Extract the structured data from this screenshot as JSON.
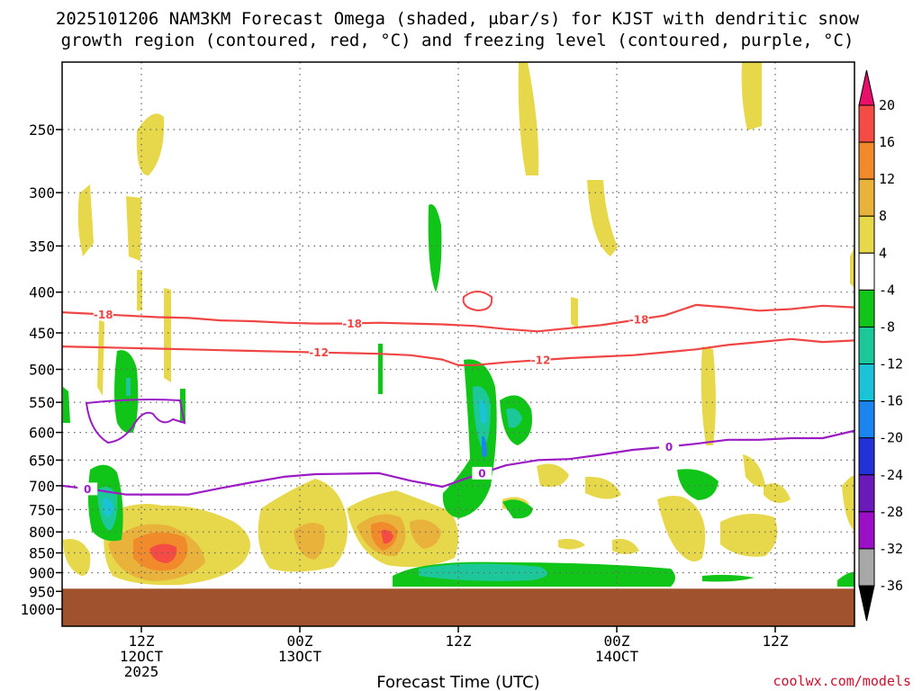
{
  "chart_data": {
    "type": "heatmap",
    "title_line1": "2025101206 NAM3KM Forecast Omega (shaded, μbar/s) for KJST with dendritic snow",
    "title_line2": "growth region (contoured, red, °C) and freezing level (contoured, purple, °C)",
    "xlabel": "Forecast Time (UTC)",
    "credit": "coolwx.com/models",
    "y_ticks": [
      "250",
      "300",
      "350",
      "400",
      "450",
      "500",
      "550",
      "600",
      "650",
      "700",
      "750",
      "800",
      "850",
      "900",
      "950",
      "1000"
    ],
    "y_tick_values": [
      250,
      300,
      350,
      400,
      450,
      500,
      550,
      600,
      650,
      700,
      750,
      800,
      850,
      900,
      950,
      1000
    ],
    "ylim_hpa": [
      200,
      1050
    ],
    "xlim_hours": [
      6,
      56
    ],
    "x_ticks": [
      {
        "hour": 11,
        "line1": "12Z",
        "line2": "12OCT",
        "line3": "2025"
      },
      {
        "hour": 21,
        "line1": "00Z",
        "line2": "13OCT",
        "line3": ""
      },
      {
        "hour": 31,
        "line1": "12Z",
        "line2": "",
        "line3": ""
      },
      {
        "hour": 41,
        "line1": "00Z",
        "line2": "14OCT",
        "line3": ""
      },
      {
        "hour": 51,
        "line1": "12Z",
        "line2": "",
        "line3": ""
      }
    ],
    "colorbar": {
      "levels": [
        "20",
        "16",
        "12",
        "8",
        "4",
        "-4",
        "-8",
        "-12",
        "-16",
        "-20",
        "-24",
        "-28",
        "-32",
        "-36"
      ],
      "colors": [
        "#e8106a",
        "#f44b45",
        "#f08a2a",
        "#e9b23a",
        "#e6d84a",
        "#ffffff",
        "#11c418",
        "#1cc89a",
        "#1ac3d6",
        "#1c84ee",
        "#2231d8",
        "#6a1ab8",
        "#9b0fc7",
        "#a8a8a8",
        "#000000"
      ]
    },
    "ground_level_hpa": 950,
    "ground_color": "#a0522d",
    "contour_labels": {
      "dgz_top": "-18",
      "dgz_bottom": "-12",
      "freezing": "0"
    },
    "series": [
      {
        "name": "-18C isotherm",
        "color": "#f04545",
        "hours": [
          6,
          8,
          10,
          12,
          14,
          16,
          18,
          20,
          22,
          24,
          26,
          28,
          30,
          32,
          34,
          36,
          38,
          40,
          42,
          44,
          46,
          48,
          50,
          52,
          54,
          56
        ],
        "pressure": [
          424,
          426,
          428,
          430,
          431,
          434,
          435,
          437,
          438,
          438,
          437,
          438,
          439,
          441,
          445,
          448,
          444,
          440,
          434,
          428,
          415,
          418,
          422,
          420,
          416,
          418
        ]
      },
      {
        "name": "-12C isotherm",
        "color": "#f04545",
        "hours": [
          6,
          8,
          10,
          12,
          14,
          16,
          18,
          20,
          22,
          24,
          26,
          28,
          30,
          31,
          32,
          34,
          36,
          38,
          40,
          42,
          44,
          46,
          48,
          50,
          52,
          54,
          56
        ],
        "pressure": [
          468,
          469,
          470,
          471,
          472,
          473,
          474,
          475,
          476,
          477,
          478,
          480,
          486,
          494,
          494,
          490,
          487,
          484,
          482,
          480,
          476,
          472,
          466,
          462,
          458,
          462,
          460
        ]
      },
      {
        "name": "0C freezing level",
        "color": "#9b1cc4",
        "hours": [
          6,
          8,
          10,
          12,
          14,
          16,
          18,
          20,
          22,
          24,
          26,
          28,
          30,
          32,
          34,
          36,
          38,
          40,
          42,
          44,
          46,
          48,
          50,
          52,
          54,
          56
        ],
        "pressure": [
          700,
          708,
          718,
          718,
          718,
          705,
          693,
          682,
          677,
          676,
          675,
          690,
          702,
          680,
          660,
          650,
          648,
          640,
          631,
          626,
          620,
          613,
          613,
          610,
          610,
          597
        ]
      }
    ]
  }
}
